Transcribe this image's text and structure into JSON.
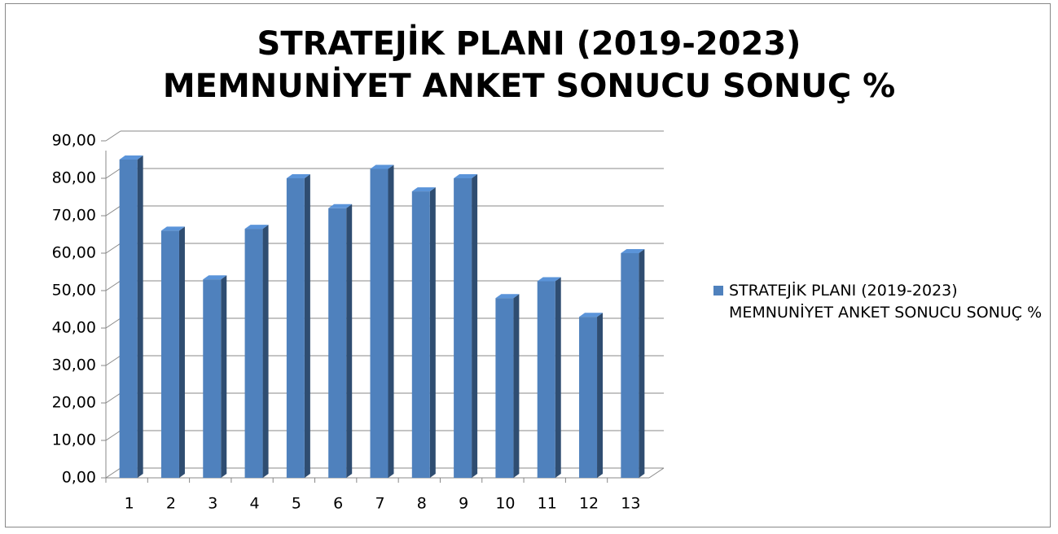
{
  "chart_data": {
    "type": "bar",
    "title": "STRATEJİK PLANI (2019-2023) MEMNUNİYET ANKET SONUCU SONUÇ %",
    "categories": [
      "1",
      "2",
      "3",
      "4",
      "5",
      "6",
      "7",
      "8",
      "9",
      "10",
      "11",
      "12",
      "13"
    ],
    "series": [
      {
        "name": "STRATEJİK PLANI (2019-2023) MEMNUNİYET ANKET SONUCU SONUÇ %",
        "color": "#4f81bd",
        "values": [
          85,
          66,
          53,
          66.5,
          80,
          72,
          82.5,
          76.5,
          80,
          48,
          52.5,
          43,
          60
        ]
      }
    ],
    "ylim": [
      0,
      90
    ],
    "yticks": [
      {
        "value": 0,
        "label": "0,00"
      },
      {
        "value": 10,
        "label": "10,00"
      },
      {
        "value": 20,
        "label": "20,00"
      },
      {
        "value": 30,
        "label": "30,00"
      },
      {
        "value": 40,
        "label": "40,00"
      },
      {
        "value": 50,
        "label": "50,00"
      },
      {
        "value": 60,
        "label": "60,00"
      },
      {
        "value": 70,
        "label": "70,00"
      },
      {
        "value": 80,
        "label": "80,00"
      },
      {
        "value": 90,
        "label": "90,00"
      }
    ],
    "grid": true,
    "legend": "right"
  }
}
